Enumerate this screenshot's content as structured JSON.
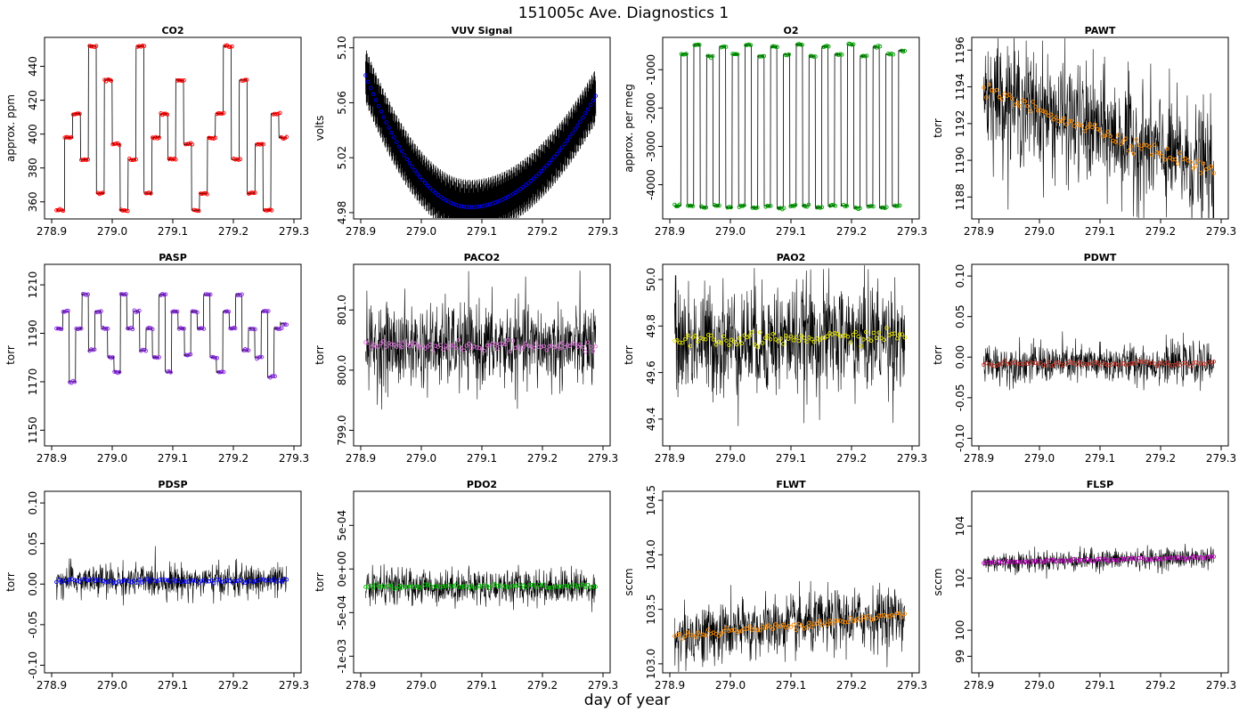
{
  "figure": {
    "title": "151005c   Ave. Diagnostics 1",
    "xlabel": "day of year"
  },
  "chart_data": [
    {
      "type": "line",
      "title": "CO2",
      "ylabel": "approx. ppm",
      "xlim": [
        278.9,
        279.3
      ],
      "ylim": [
        352,
        455
      ],
      "xticks": [
        "278.9",
        "279.0",
        "279.1",
        "279.2",
        "279.3"
      ],
      "yticks": [
        360,
        380,
        400,
        420,
        440
      ],
      "ytick_labels": [
        "360",
        "380",
        "400",
        "420",
        "440"
      ],
      "marker_color": "#ff0000",
      "pattern": "levels",
      "levels": [
        355,
        398,
        412,
        385,
        452,
        365,
        432,
        394,
        355,
        385,
        452,
        365,
        398,
        412,
        385,
        432,
        394,
        355,
        365,
        398,
        412,
        452,
        385,
        432,
        365,
        394,
        355,
        412,
        398
      ],
      "series": [
        {
          "values": []
        }
      ]
    },
    {
      "type": "line",
      "title": "VUV Signal",
      "ylabel": "volts",
      "xlim": [
        278.9,
        279.3
      ],
      "ylim": [
        4.978,
        5.105
      ],
      "xticks": [
        "278.9",
        "279.0",
        "279.1",
        "279.2",
        "279.3"
      ],
      "yticks": [
        4.98,
        5.02,
        5.06,
        5.1
      ],
      "ytick_labels": [
        "4.98",
        "5.02",
        "5.06",
        "5.10"
      ],
      "marker_color": "#0000ff",
      "pattern": "parabola",
      "curve": {
        "x_min": 279.08,
        "y_min": 4.984,
        "y_left": 5.08,
        "y_right": 5.065
      },
      "series": [
        {
          "values": []
        }
      ]
    },
    {
      "type": "line",
      "title": "O2",
      "ylabel": "approx. per meg",
      "xlim": [
        278.9,
        279.3
      ],
      "ylim": [
        -4800,
        -250
      ],
      "xticks": [
        "278.9",
        "279.0",
        "279.1",
        "279.2",
        "279.3"
      ],
      "yticks": [
        -4000,
        -3000,
        -2000,
        -1000
      ],
      "ytick_labels": [
        "-4000",
        "-3000",
        "-2000",
        "-1000"
      ],
      "marker_color": "#00a000",
      "pattern": "levels",
      "levels": [
        -4550,
        -600,
        -4550,
        -350,
        -4600,
        -650,
        -4550,
        -400,
        -4600,
        -600,
        -4550,
        -350,
        -4600,
        -650,
        -4550,
        -400,
        -4600,
        -600,
        -4550,
        -350,
        -4550,
        -650,
        -4600,
        -400,
        -4550,
        -600,
        -4550,
        -350,
        -4600,
        -650,
        -4550,
        -400,
        -4600,
        -600,
        -4550,
        -500
      ],
      "series": [
        {
          "values": []
        }
      ]
    },
    {
      "type": "line",
      "title": "PAWT",
      "ylabel": "torr",
      "xlim": [
        278.9,
        279.3
      ],
      "ylim": [
        1187,
        1196.5
      ],
      "xticks": [
        "278.9",
        "279.0",
        "279.1",
        "279.2",
        "279.3"
      ],
      "yticks": [
        1188,
        1190,
        1192,
        1194,
        1196
      ],
      "ytick_labels": [
        "1188",
        "1190",
        "1192",
        "1194",
        "1196"
      ],
      "marker_color": "#ff8c00",
      "pattern": "noise",
      "trend": [
        1193.8,
        1189.4
      ],
      "noise": 1.6,
      "series": [
        {
          "values": []
        }
      ]
    },
    {
      "type": "line",
      "title": "PASP",
      "ylabel": "torr",
      "xlim": [
        278.9,
        279.3
      ],
      "ylim": [
        1145,
        1217
      ],
      "xticks": [
        "278.9",
        "279.0",
        "279.1",
        "279.2",
        "279.3"
      ],
      "yticks": [
        1150,
        1170,
        1190,
        1210
      ],
      "ytick_labels": [
        "1150",
        "1170",
        "1190",
        "1210"
      ],
      "marker_color": "#8a2be2",
      "pattern": "levels",
      "levels": [
        1192,
        1199,
        1170,
        1192,
        1206,
        1183,
        1199,
        1192,
        1180,
        1174,
        1206,
        1192,
        1199,
        1183,
        1192,
        1180,
        1206,
        1174,
        1199,
        1192,
        1181,
        1199,
        1192,
        1206,
        1180,
        1174,
        1199,
        1192,
        1206,
        1183,
        1192,
        1180,
        1199,
        1172,
        1192,
        1194
      ],
      "series": [
        {
          "values": []
        }
      ]
    },
    {
      "type": "line",
      "title": "PACO2",
      "ylabel": "torr",
      "xlim": [
        278.9,
        279.3
      ],
      "ylim": [
        798.8,
        801.7
      ],
      "xticks": [
        "278.9",
        "279.0",
        "279.1",
        "279.2",
        "279.3"
      ],
      "yticks": [
        799.0,
        800.0,
        801.0
      ],
      "ytick_labels": [
        "799.0",
        "800.0",
        "801.0"
      ],
      "marker_color": "#da70d6",
      "pattern": "noise",
      "trend": [
        800.4,
        800.4
      ],
      "noise": 0.35,
      "series": [
        {
          "values": []
        }
      ]
    },
    {
      "type": "line",
      "title": "PAO2",
      "ylabel": "torr",
      "xlim": [
        278.9,
        279.3
      ],
      "ylim": [
        49.3,
        50.05
      ],
      "xticks": [
        "278.9",
        "279.0",
        "279.1",
        "279.2",
        "279.3"
      ],
      "yticks": [
        49.4,
        49.6,
        49.8,
        50.0
      ],
      "ytick_labels": [
        "49.4",
        "49.6",
        "49.8",
        "50.0"
      ],
      "marker_color": "#e6e600",
      "pattern": "noise",
      "trend": [
        49.73,
        49.76
      ],
      "noise": 0.12,
      "series": [
        {
          "values": []
        }
      ]
    },
    {
      "type": "line",
      "title": "PDWT",
      "ylabel": "torr",
      "xlim": [
        278.9,
        279.3
      ],
      "ylim": [
        -0.105,
        0.11
      ],
      "xticks": [
        "278.9",
        "279.0",
        "279.1",
        "279.2",
        "279.3"
      ],
      "yticks": [
        -0.1,
        -0.05,
        0.0,
        0.05,
        0.1
      ],
      "ytick_labels": [
        "-0.10",
        "-0.05",
        "0.00",
        "0.05",
        "0.10"
      ],
      "marker_color": "#c0392b",
      "pattern": "noise",
      "trend": [
        -0.008,
        -0.008
      ],
      "noise": 0.012,
      "series": [
        {
          "values": []
        }
      ]
    },
    {
      "type": "line",
      "title": "PDSP",
      "ylabel": "torr",
      "xlim": [
        278.9,
        279.3
      ],
      "ylim": [
        -0.105,
        0.11
      ],
      "xticks": [
        "278.9",
        "279.0",
        "279.1",
        "279.2",
        "279.3"
      ],
      "yticks": [
        -0.1,
        -0.05,
        0.0,
        0.05,
        0.1
      ],
      "ytick_labels": [
        "-0.10",
        "-0.05",
        "0.00",
        "0.05",
        "0.10"
      ],
      "marker_color": "#0000ff",
      "pattern": "noise",
      "trend": [
        0.004,
        0.004
      ],
      "noise": 0.01,
      "series": [
        {
          "values": []
        }
      ]
    },
    {
      "type": "line",
      "title": "PDO2",
      "ylabel": "torr",
      "xlim": [
        278.9,
        279.3
      ],
      "ylim": [
        -0.00115,
        0.00085
      ],
      "xticks": [
        "278.9",
        "279.0",
        "279.1",
        "279.2",
        "279.3"
      ],
      "yticks": [
        -0.001,
        -0.0005,
        0.0,
        0.0005
      ],
      "ytick_labels": [
        "-1e-03",
        "-5e-04",
        "0e+00",
        "5e-04"
      ],
      "marker_color": "#00c000",
      "pattern": "noise",
      "trend": [
        -0.0002,
        -0.0002
      ],
      "noise": 0.0001,
      "series": [
        {
          "values": []
        }
      ]
    },
    {
      "type": "line",
      "title": "FLWT",
      "ylabel": "sccm",
      "xlim": [
        278.9,
        279.3
      ],
      "ylim": [
        102.95,
        104.55
      ],
      "xticks": [
        "278.9",
        "279.0",
        "279.1",
        "279.2",
        "279.3"
      ],
      "yticks": [
        103.0,
        103.5,
        104.0,
        104.5
      ],
      "ytick_labels": [
        "103.0",
        "103.5",
        "104.0",
        "104.5"
      ],
      "marker_color": "#ff8c00",
      "pattern": "noise",
      "trend": [
        103.25,
        103.45
      ],
      "noise": 0.14,
      "series": [
        {
          "values": []
        }
      ]
    },
    {
      "type": "line",
      "title": "FLSP",
      "ylabel": "sccm",
      "xlim": [
        278.9,
        279.3
      ],
      "ylim": [
        98.5,
        105.2
      ],
      "xticks": [
        "278.9",
        "279.0",
        "279.1",
        "279.2",
        "279.3"
      ],
      "yticks": [
        99,
        100,
        102,
        104
      ],
      "ytick_labels": [
        "99",
        "100",
        "102",
        "104"
      ],
      "marker_color": "#c000c0",
      "pattern": "noise",
      "trend": [
        102.6,
        102.8
      ],
      "noise": 0.2,
      "series": [
        {
          "values": []
        }
      ]
    }
  ]
}
